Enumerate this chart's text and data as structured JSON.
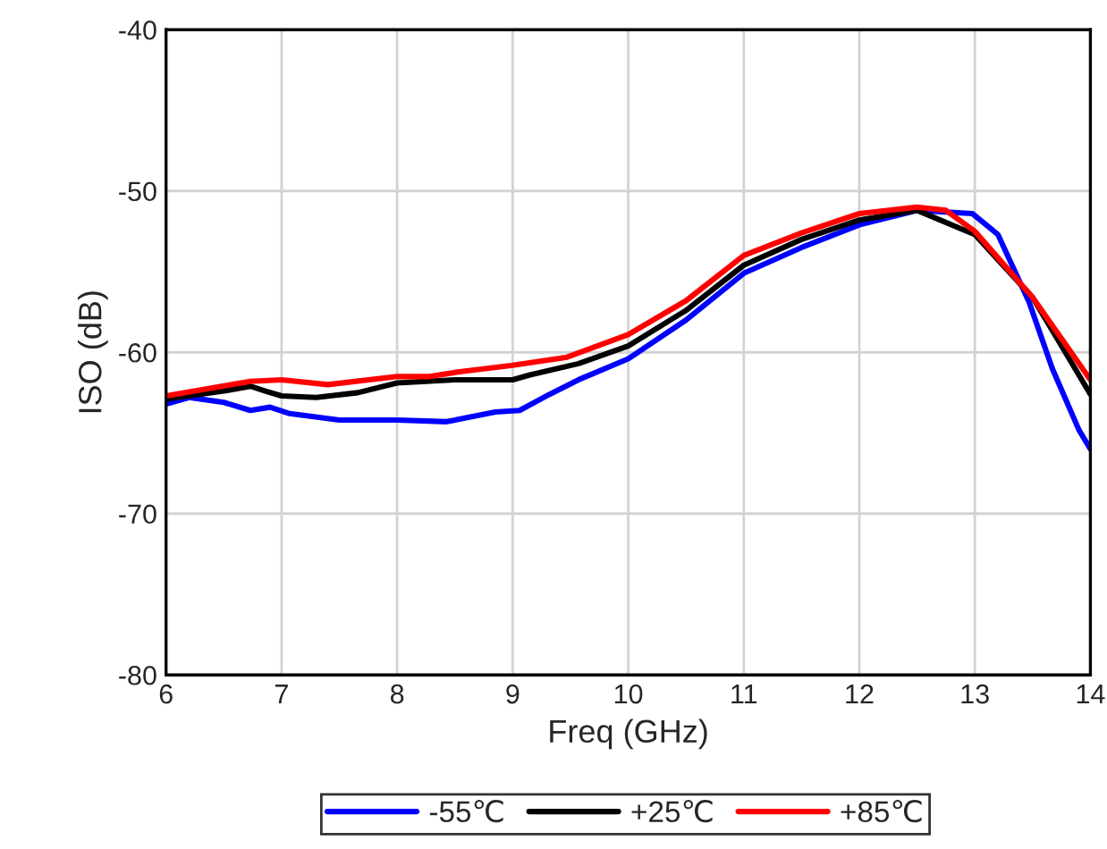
{
  "chart_data": {
    "type": "line",
    "xlabel": "Freq (GHz)",
    "ylabel": "ISO (dB)",
    "xlim": [
      6,
      14
    ],
    "xticks": [
      6,
      7,
      8,
      9,
      10,
      11,
      12,
      13,
      14
    ],
    "ylim": [
      -80,
      -40
    ],
    "yticks": [
      -80,
      -70,
      -60,
      -50,
      -40
    ],
    "grid": true,
    "legend": "bottom",
    "line_style": "solid",
    "series": [
      {
        "name": "-55℃",
        "color": "#0000ff",
        "x": [
          6,
          6.2,
          6.5,
          6.73,
          6.9,
          7.07,
          7.5,
          8,
          8.43,
          8.85,
          9.06,
          9.32,
          9.57,
          10,
          10.5,
          11,
          11.5,
          12,
          12.5,
          12.98,
          13.2,
          13.47,
          13.67,
          13.9,
          14
        ],
        "values": [
          -63.2,
          -62.8,
          -63.1,
          -63.6,
          -63.4,
          -63.8,
          -64.2,
          -64.2,
          -64.3,
          -63.7,
          -63.6,
          -62.6,
          -61.7,
          -60.4,
          -58.0,
          -55.1,
          -53.5,
          -52.1,
          -51.2,
          -51.4,
          -52.7,
          -56.9,
          -61.0,
          -64.8,
          -66.0
        ]
      },
      {
        "name": "+25℃",
        "color": "#000000",
        "x": [
          6,
          6.5,
          6.73,
          6.86,
          7,
          7.3,
          7.66,
          8,
          8.5,
          9,
          9.15,
          9.57,
          10,
          10.5,
          11,
          11.5,
          12,
          12.5,
          13,
          13.5,
          13.75,
          14
        ],
        "values": [
          -62.9,
          -62.4,
          -62.1,
          -62.4,
          -62.7,
          -62.8,
          -62.5,
          -61.9,
          -61.7,
          -61.7,
          -61.4,
          -60.7,
          -59.6,
          -57.4,
          -54.6,
          -53.0,
          -51.8,
          -51.2,
          -52.7,
          -56.6,
          -59.6,
          -62.6
        ]
      },
      {
        "name": "+85℃",
        "color": "#ff0000",
        "x": [
          6,
          6.73,
          7,
          7.4,
          8,
          8.28,
          8.54,
          9,
          9.47,
          10,
          10.5,
          11,
          11.5,
          12,
          12.5,
          12.75,
          13,
          13.5,
          14
        ],
        "values": [
          -62.7,
          -61.8,
          -61.7,
          -62.0,
          -61.5,
          -61.5,
          -61.2,
          -60.8,
          -60.3,
          -58.9,
          -56.8,
          -54.0,
          -52.6,
          -51.4,
          -51.0,
          -51.2,
          -52.5,
          -56.6,
          -61.7
        ]
      }
    ]
  }
}
